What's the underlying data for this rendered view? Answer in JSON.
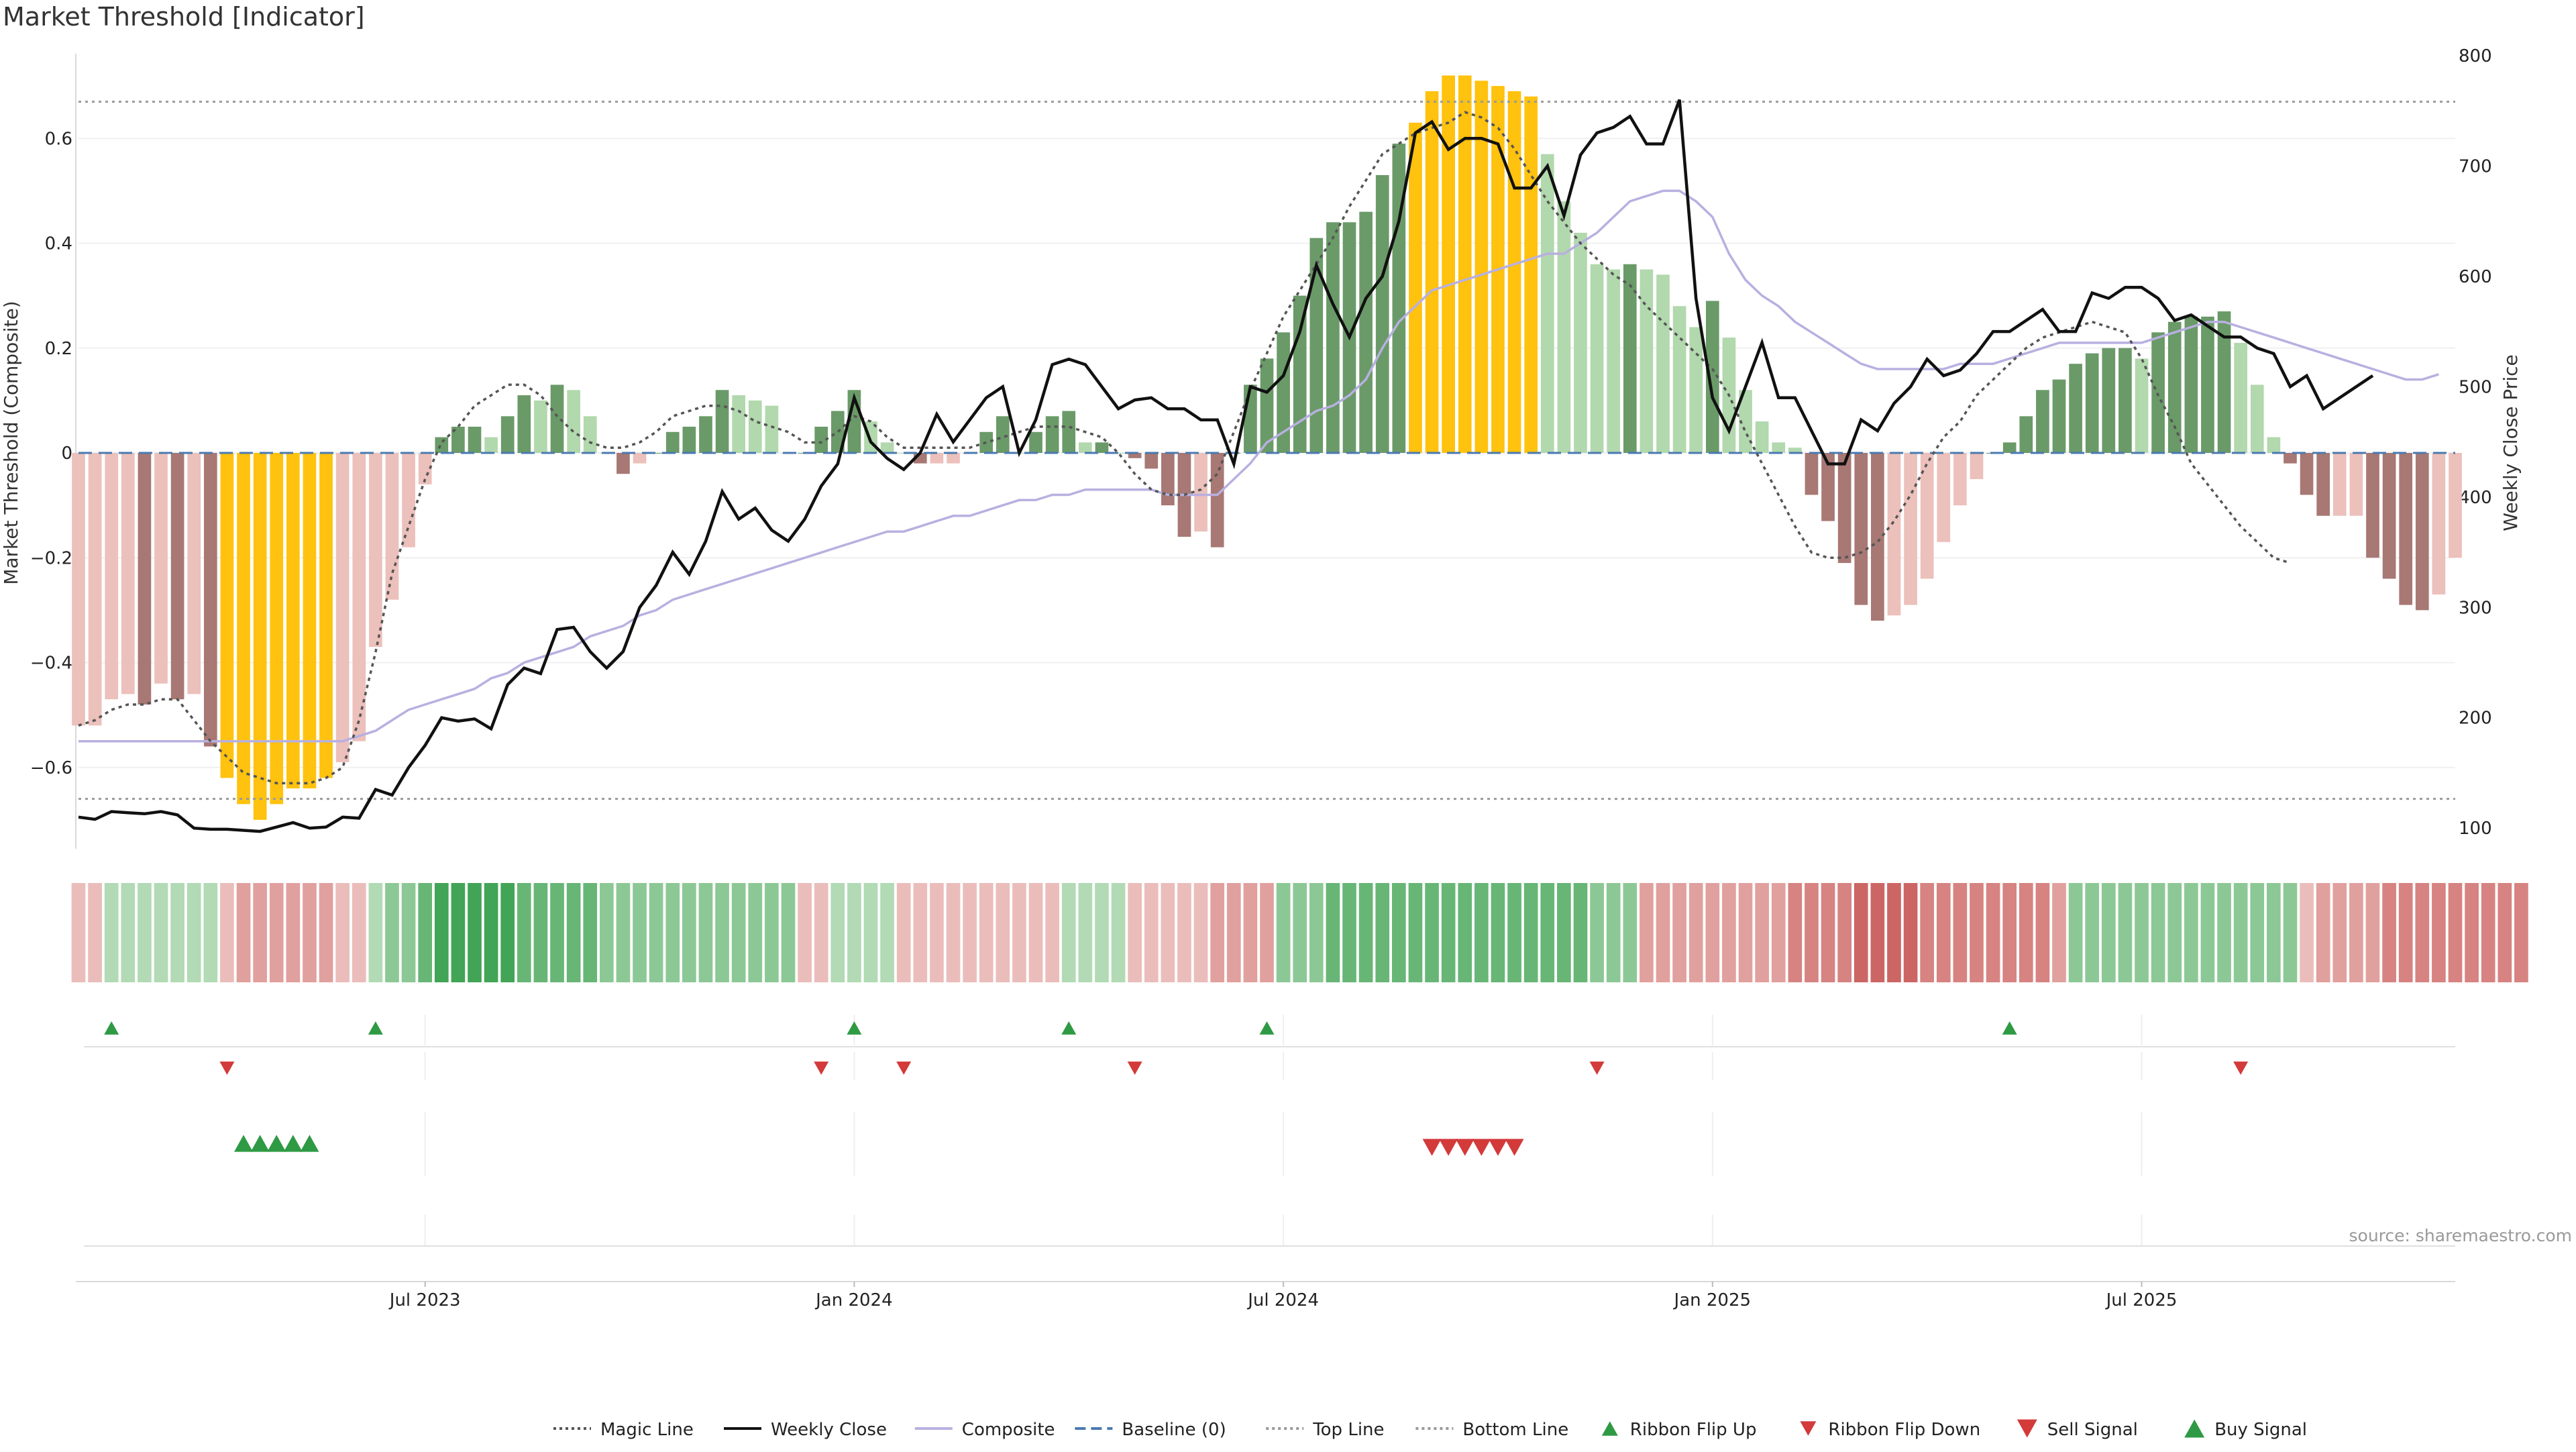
{
  "chart_data": {
    "type": "bar",
    "title": "Market Threshold [Indicator]",
    "ylabel": "Market Threshold (Composite)",
    "y2label": "Weekly Close Price",
    "ylim": [
      -0.8,
      0.8
    ],
    "y2lim": [
      60,
      820
    ],
    "yticks": [
      -0.6,
      -0.4,
      -0.2,
      0,
      0.2,
      0.4,
      0.6
    ],
    "yticklabels": [
      "−0.6",
      "−0.4",
      "−0.2",
      "0",
      "0.2",
      "0.4",
      "0.6"
    ],
    "y2ticks": [
      100,
      200,
      300,
      400,
      500,
      600,
      700,
      800
    ],
    "xticks": [
      {
        "label": "Jul 2023",
        "week": 21
      },
      {
        "label": "Jan 2024",
        "week": 47
      },
      {
        "label": "Jul 2024",
        "week": 73
      },
      {
        "label": "Jan 2025",
        "week": 99
      },
      {
        "label": "Jul 2025",
        "week": 125
      }
    ],
    "source": "source: sharemaestro.com",
    "top_line": 0.67,
    "bottom_line": -0.66,
    "baseline": 0,
    "colors": {
      "strong_pos": "#6a9a68",
      "weak_pos": "#b2d8ad",
      "strong_neg": "#a87874",
      "weak_neg": "#ecc0bb",
      "extreme": "#ffc20e",
      "close": "#111111",
      "magic": "#555555",
      "composite": "#b8b0e0",
      "baseline": "#4a7ab0",
      "buy": "#2e9a44",
      "sell": "#d33a3a"
    },
    "composite": [
      -0.52,
      -0.52,
      -0.47,
      -0.46,
      -0.48,
      -0.44,
      -0.47,
      -0.46,
      -0.56,
      -0.62,
      -0.67,
      -0.7,
      -0.67,
      -0.64,
      -0.64,
      -0.62,
      -0.59,
      -0.55,
      -0.37,
      -0.28,
      -0.18,
      -0.06,
      0.03,
      0.05,
      0.05,
      0.03,
      0.07,
      0.11,
      0.1,
      0.13,
      0.12,
      0.07,
      0.0,
      -0.04,
      -0.02,
      0.0,
      0.04,
      0.05,
      0.07,
      0.12,
      0.11,
      0.1,
      0.09,
      0.0,
      0.0,
      0.05,
      0.08,
      0.12,
      0.06,
      0.02,
      0.0,
      -0.02,
      -0.02,
      -0.02,
      0.0,
      0.04,
      0.07,
      0.0,
      0.04,
      0.07,
      0.08,
      0.02,
      0.02,
      0.0,
      -0.01,
      -0.03,
      -0.1,
      -0.16,
      -0.15,
      -0.18,
      0.0,
      0.13,
      0.18,
      0.23,
      0.3,
      0.41,
      0.44,
      0.44,
      0.46,
      0.53,
      0.59,
      0.63,
      0.69,
      0.72,
      0.72,
      0.71,
      0.7,
      0.69,
      0.68,
      0.57,
      0.48,
      0.42,
      0.36,
      0.35,
      0.36,
      0.35,
      0.34,
      0.28,
      0.24,
      0.29,
      0.22,
      0.12,
      0.06,
      0.02,
      0.01,
      -0.08,
      -0.13,
      -0.21,
      -0.29,
      -0.32,
      -0.31,
      -0.29,
      -0.24,
      -0.17,
      -0.1,
      -0.05,
      0.0,
      0.02,
      0.07,
      0.12,
      0.14,
      0.17,
      0.19,
      0.2,
      0.2,
      0.18,
      0.23,
      0.25,
      0.26,
      0.26,
      0.27,
      0.21,
      0.13,
      0.03,
      -0.02,
      -0.08,
      -0.12,
      -0.12,
      -0.12,
      -0.2,
      -0.24,
      -0.29,
      -0.3,
      -0.27,
      -0.2
    ],
    "magic": [
      -0.52,
      -0.51,
      -0.49,
      -0.48,
      -0.48,
      -0.47,
      -0.47,
      -0.51,
      -0.55,
      -0.58,
      -0.61,
      -0.62,
      -0.63,
      -0.63,
      -0.63,
      -0.62,
      -0.6,
      -0.51,
      -0.38,
      -0.23,
      -0.14,
      -0.05,
      0.02,
      0.05,
      0.09,
      0.11,
      0.13,
      0.13,
      0.11,
      0.07,
      0.04,
      0.02,
      0.01,
      0.01,
      0.02,
      0.04,
      0.07,
      0.08,
      0.09,
      0.09,
      0.08,
      0.06,
      0.05,
      0.04,
      0.02,
      0.02,
      0.04,
      0.07,
      0.06,
      0.03,
      0.01,
      0.01,
      0.01,
      0.01,
      0.01,
      0.02,
      0.03,
      0.04,
      0.05,
      0.05,
      0.05,
      0.04,
      0.03,
      0.0,
      -0.04,
      -0.07,
      -0.08,
      -0.08,
      -0.07,
      -0.04,
      0.04,
      0.12,
      0.19,
      0.26,
      0.31,
      0.36,
      0.41,
      0.47,
      0.52,
      0.57,
      0.59,
      0.61,
      0.62,
      0.63,
      0.65,
      0.64,
      0.62,
      0.58,
      0.53,
      0.48,
      0.44,
      0.4,
      0.37,
      0.34,
      0.32,
      0.28,
      0.25,
      0.22,
      0.19,
      0.16,
      0.11,
      0.04,
      -0.02,
      -0.08,
      -0.14,
      -0.19,
      -0.2,
      -0.2,
      -0.19,
      -0.17,
      -0.13,
      -0.08,
      -0.02,
      0.03,
      0.06,
      0.11,
      0.14,
      0.17,
      0.2,
      0.22,
      0.23,
      0.24,
      0.25,
      0.24,
      0.23,
      0.18,
      0.11,
      0.05,
      -0.02,
      -0.06,
      -0.1,
      -0.14,
      -0.17,
      -0.2,
      -0.21
    ],
    "composite_smooth": [
      -0.55,
      -0.55,
      -0.55,
      -0.55,
      -0.55,
      -0.55,
      -0.55,
      -0.55,
      -0.55,
      -0.55,
      -0.55,
      -0.55,
      -0.55,
      -0.55,
      -0.55,
      -0.55,
      -0.55,
      -0.54,
      -0.53,
      -0.51,
      -0.49,
      -0.48,
      -0.47,
      -0.46,
      -0.45,
      -0.43,
      -0.42,
      -0.4,
      -0.39,
      -0.38,
      -0.37,
      -0.35,
      -0.34,
      -0.33,
      -0.31,
      -0.3,
      -0.28,
      -0.27,
      -0.26,
      -0.25,
      -0.24,
      -0.23,
      -0.22,
      -0.21,
      -0.2,
      -0.19,
      -0.18,
      -0.17,
      -0.16,
      -0.15,
      -0.15,
      -0.14,
      -0.13,
      -0.12,
      -0.12,
      -0.11,
      -0.1,
      -0.09,
      -0.09,
      -0.08,
      -0.08,
      -0.07,
      -0.07,
      -0.07,
      -0.07,
      -0.07,
      -0.08,
      -0.08,
      -0.08,
      -0.08,
      -0.05,
      -0.02,
      0.02,
      0.04,
      0.06,
      0.08,
      0.09,
      0.11,
      0.14,
      0.2,
      0.25,
      0.28,
      0.31,
      0.32,
      0.33,
      0.34,
      0.35,
      0.36,
      0.37,
      0.38,
      0.38,
      0.4,
      0.42,
      0.45,
      0.48,
      0.49,
      0.5,
      0.5,
      0.48,
      0.45,
      0.38,
      0.33,
      0.3,
      0.28,
      0.25,
      0.23,
      0.21,
      0.19,
      0.17,
      0.16,
      0.16,
      0.16,
      0.16,
      0.16,
      0.17,
      0.17,
      0.17,
      0.18,
      0.19,
      0.2,
      0.21,
      0.21,
      0.21,
      0.21,
      0.21,
      0.21,
      0.22,
      0.23,
      0.24,
      0.25,
      0.25,
      0.24,
      0.23,
      0.22,
      0.21,
      0.2,
      0.19,
      0.18,
      0.17,
      0.16,
      0.15,
      0.14,
      0.14,
      0.15
    ],
    "weekly_close": [
      110,
      108,
      115,
      114,
      113,
      115,
      112,
      100,
      99,
      99,
      98,
      97,
      101,
      105,
      100,
      101,
      110,
      109,
      135,
      130,
      155,
      175,
      200,
      197,
      199,
      190,
      230,
      245,
      240,
      280,
      282,
      260,
      245,
      260,
      300,
      320,
      350,
      330,
      360,
      405,
      380,
      390,
      370,
      360,
      380,
      410,
      430,
      490,
      450,
      435,
      425,
      440,
      475,
      450,
      470,
      490,
      500,
      440,
      470,
      520,
      525,
      520,
      500,
      480,
      488,
      490,
      480,
      480,
      470,
      470,
      430,
      500,
      495,
      510,
      550,
      610,
      575,
      545,
      580,
      600,
      650,
      730,
      740,
      715,
      725,
      725,
      720,
      680,
      680,
      700,
      655,
      710,
      730,
      735,
      745,
      720,
      720,
      760,
      580,
      490,
      460,
      500,
      540,
      490,
      490,
      460,
      430,
      430,
      470,
      460,
      485,
      500,
      525,
      510,
      515,
      530,
      550,
      550,
      560,
      570,
      550,
      550,
      585,
      580,
      590,
      590,
      580,
      560,
      565,
      555,
      545,
      545,
      535,
      530,
      500,
      510,
      480,
      490,
      500,
      510
    ],
    "ribbon_levels": [
      -1,
      -1,
      1,
      1,
      1,
      1,
      1,
      1,
      1,
      -1,
      -2,
      -2,
      -2,
      -2,
      -2,
      -2,
      -1,
      -1,
      1,
      2,
      2,
      3,
      4,
      4,
      4,
      4,
      4,
      3,
      3,
      3,
      3,
      3,
      2,
      2,
      2,
      2,
      2,
      2,
      2,
      2,
      2,
      2,
      2,
      2,
      -1,
      -1,
      1,
      1,
      1,
      1,
      -1,
      -1,
      -1,
      -1,
      -1,
      -1,
      -1,
      -1,
      -1,
      -1,
      1,
      1,
      1,
      1,
      -1,
      -1,
      -1,
      -1,
      -1,
      -2,
      -2,
      -2,
      -2,
      2,
      2,
      2,
      3,
      3,
      3,
      3,
      3,
      3,
      3,
      3,
      3,
      3,
      3,
      3,
      3,
      3,
      3,
      3,
      2,
      2,
      2,
      -2,
      -2,
      -2,
      -2,
      -2,
      -2,
      -2,
      -2,
      -2,
      -3,
      -3,
      -3,
      -3,
      -4,
      -4,
      -4,
      -4,
      -3,
      -3,
      -3,
      -3,
      -3,
      -3,
      -3,
      -3,
      -2,
      2,
      2,
      2,
      2,
      2,
      2,
      2,
      2,
      2,
      2,
      2,
      2,
      2,
      2,
      -1,
      -2,
      -2,
      -2,
      -2,
      -3,
      -3,
      -3,
      -3,
      -3,
      -3,
      -3,
      -3,
      -3
    ],
    "ribbon_flip_up": [
      2,
      18,
      47,
      60,
      72,
      117
    ],
    "ribbon_flip_down": [
      9,
      45,
      50,
      64,
      92,
      131
    ],
    "buy_signals": [
      10,
      11,
      12,
      13,
      14
    ],
    "sell_signals": [
      82,
      83,
      84,
      85,
      86,
      87
    ],
    "legend": [
      {
        "label": "Magic Line",
        "type": "dotted-line",
        "color": "#555555"
      },
      {
        "label": "Weekly Close",
        "type": "line",
        "color": "#111111"
      },
      {
        "label": "Composite",
        "type": "line",
        "color": "#b8b0e0"
      },
      {
        "label": "Baseline (0)",
        "type": "dashed-line",
        "color": "#4a7ab0"
      },
      {
        "label": "Top Line",
        "type": "dotted-line",
        "color": "#999999"
      },
      {
        "label": "Bottom Line",
        "type": "dotted-line",
        "color": "#999999"
      },
      {
        "label": "Ribbon Flip Up",
        "type": "tri-up",
        "color": "#2e9a44"
      },
      {
        "label": "Ribbon Flip Down",
        "type": "tri-down",
        "color": "#d33a3a"
      },
      {
        "label": "Sell Signal",
        "type": "tri-down-lg",
        "color": "#d33a3a"
      },
      {
        "label": "Buy Signal",
        "type": "tri-up-lg",
        "color": "#2e9a44"
      }
    ]
  }
}
